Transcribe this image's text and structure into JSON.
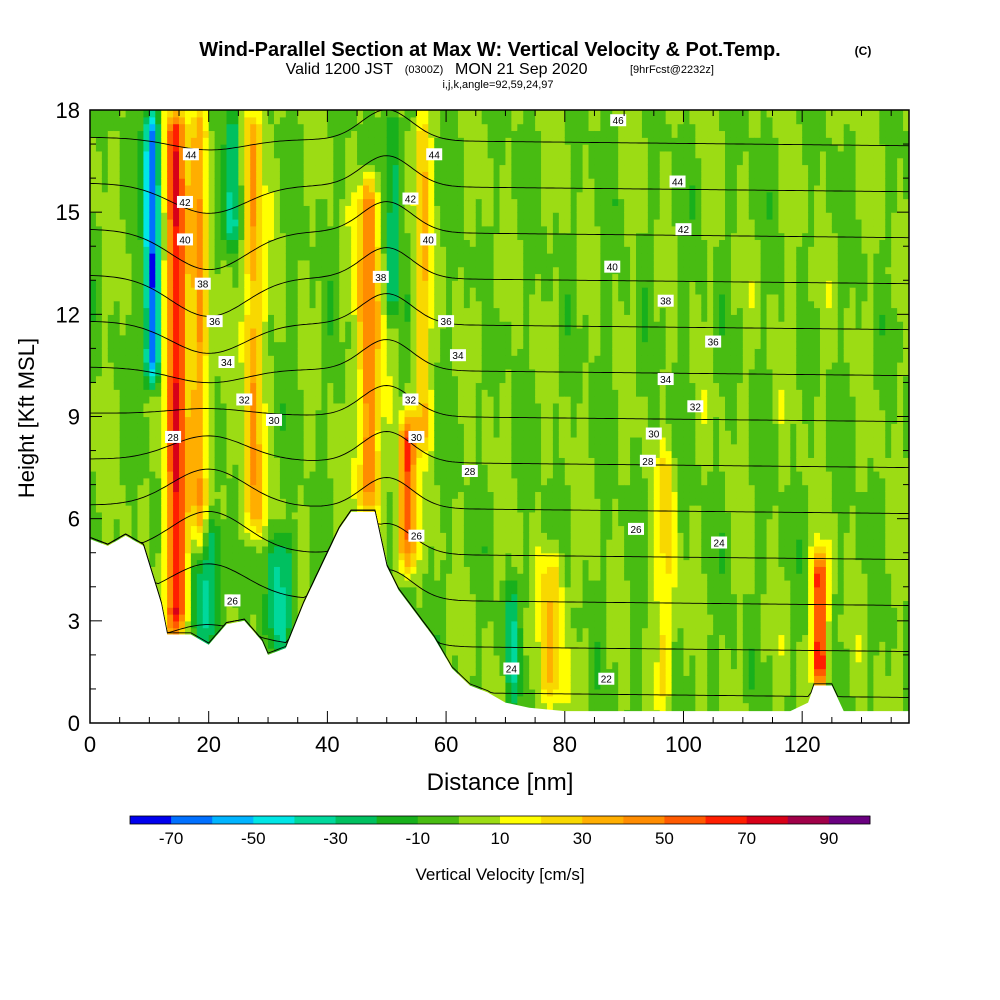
{
  "chart_data": {
    "type": "heatmap",
    "title": "Wind-Parallel Section at Max W: Vertical Velocity & Pot.Temp.",
    "title_unit": "(C)",
    "subtitle_valid": "Valid 1200 JST",
    "subtitle_utc": "(0300Z)",
    "subtitle_date": "MON 21 Sep 2020",
    "subtitle_fcst": "[9hrFcst@2232z]",
    "subtitle_indices": "i,j,k,angle=92,59,24,97",
    "xlabel": "Distance [nm]",
    "ylabel": "Height [Kft MSL]",
    "xlim": [
      0,
      138
    ],
    "ylim": [
      0,
      18
    ],
    "x_ticks": [
      "0",
      "20",
      "40",
      "60",
      "80",
      "100",
      "120"
    ],
    "y_ticks": [
      "0",
      "3",
      "6",
      "9",
      "12",
      "15",
      "18"
    ],
    "colorbar_label": "Vertical Velocity [cm/s]",
    "colorbar_ticks": [
      "-70",
      "-50",
      "-30",
      "-10",
      "10",
      "30",
      "50",
      "70",
      "90"
    ],
    "colorbar_levels": [
      -80,
      -70,
      -60,
      -50,
      -40,
      -30,
      -20,
      -10,
      0,
      10,
      20,
      30,
      40,
      50,
      60,
      70,
      80,
      90,
      100
    ],
    "colorbar_colors": [
      "#0000ee",
      "#0070ff",
      "#00b4ff",
      "#00e6e6",
      "#00d89c",
      "#00c060",
      "#18b01c",
      "#48bc12",
      "#9cdc14",
      "#ffff00",
      "#f8d800",
      "#ffae00",
      "#ff8c00",
      "#ff5a00",
      "#ff1e00",
      "#d80018",
      "#a00048",
      "#6a0080"
    ],
    "background_w_cms": 0,
    "terrain": [
      {
        "x": 0,
        "h": 5.4
      },
      {
        "x": 3,
        "h": 5.2
      },
      {
        "x": 6,
        "h": 5.5
      },
      {
        "x": 9,
        "h": 5.2
      },
      {
        "x": 12,
        "h": 3.5
      },
      {
        "x": 13,
        "h": 2.6
      },
      {
        "x": 17,
        "h": 2.6
      },
      {
        "x": 20,
        "h": 2.3
      },
      {
        "x": 23,
        "h": 2.9
      },
      {
        "x": 26,
        "h": 3.0
      },
      {
        "x": 29,
        "h": 2.4
      },
      {
        "x": 30,
        "h": 2.0
      },
      {
        "x": 33,
        "h": 2.2
      },
      {
        "x": 36,
        "h": 3.5
      },
      {
        "x": 39,
        "h": 4.6
      },
      {
        "x": 42,
        "h": 5.7
      },
      {
        "x": 44,
        "h": 6.2
      },
      {
        "x": 48,
        "h": 6.2
      },
      {
        "x": 50,
        "h": 4.6
      },
      {
        "x": 52,
        "h": 3.9
      },
      {
        "x": 55,
        "h": 3.2
      },
      {
        "x": 58,
        "h": 2.5
      },
      {
        "x": 61,
        "h": 1.6
      },
      {
        "x": 64,
        "h": 1.1
      },
      {
        "x": 67,
        "h": 0.9
      },
      {
        "x": 70,
        "h": 0.6
      },
      {
        "x": 74,
        "h": 0.45
      },
      {
        "x": 80,
        "h": 0.35
      },
      {
        "x": 118,
        "h": 0.35
      },
      {
        "x": 121,
        "h": 0.6
      },
      {
        "x": 122,
        "h": 1.1
      },
      {
        "x": 125,
        "h": 1.1
      },
      {
        "x": 127,
        "h": 0.35
      },
      {
        "x": 138,
        "h": 0.35
      }
    ],
    "updraft_bands": [
      {
        "x": 14.5,
        "w": 1.8,
        "wmax": 70,
        "y0": 2.6,
        "y1": 18
      },
      {
        "x": 18.5,
        "w": 1.4,
        "wmax": 40,
        "y0": 5,
        "y1": 18
      },
      {
        "x": 27.5,
        "w": 1.6,
        "wmax": 40,
        "y0": 5.5,
        "y1": 18
      },
      {
        "x": 47,
        "w": 1.8,
        "wmax": 50,
        "y0": 6.2,
        "y1": 16
      },
      {
        "x": 53.5,
        "w": 1.4,
        "wmax": 60,
        "y0": 4.5,
        "y1": 9
      },
      {
        "x": 56,
        "w": 1.4,
        "wmax": 30,
        "y0": 8,
        "y1": 18
      },
      {
        "x": 78,
        "w": 2.0,
        "wmax": 30,
        "y0": 0.5,
        "y1": 5
      },
      {
        "x": 97,
        "w": 1.8,
        "wmax": 20,
        "y0": 0.5,
        "y1": 8
      },
      {
        "x": 123,
        "w": 1.2,
        "wmax": 70,
        "y0": 1.1,
        "y1": 5
      }
    ],
    "downdraft_bands": [
      {
        "x": 10.5,
        "w": 1.3,
        "wmin": -70,
        "y0": 10,
        "y1": 18
      },
      {
        "x": 20,
        "w": 2.6,
        "wmin": -30,
        "y0": 2.4,
        "y1": 6
      },
      {
        "x": 24,
        "w": 1.2,
        "wmin": -40,
        "y0": 14,
        "y1": 18
      },
      {
        "x": 32,
        "w": 2.4,
        "wmin": -30,
        "y0": 2.2,
        "y1": 5.5
      },
      {
        "x": 51,
        "w": 1.2,
        "wmin": -30,
        "y0": 12,
        "y1": 18
      },
      {
        "x": 71,
        "w": 1.0,
        "wmin": -30,
        "y0": 0.6,
        "y1": 4
      }
    ],
    "theta_levels": [
      22,
      24,
      26,
      28,
      30,
      32,
      34,
      36,
      38,
      40,
      42,
      44,
      46
    ],
    "theta_labels": [
      {
        "text": "46",
        "x": 89,
        "y": 17.7
      },
      {
        "text": "44",
        "x": 17,
        "y": 16.7
      },
      {
        "text": "44",
        "x": 58,
        "y": 16.7
      },
      {
        "text": "44",
        "x": 99,
        "y": 15.9
      },
      {
        "text": "42",
        "x": 16,
        "y": 15.3
      },
      {
        "text": "42",
        "x": 54,
        "y": 15.4
      },
      {
        "text": "42",
        "x": 100,
        "y": 14.5
      },
      {
        "text": "40",
        "x": 16,
        "y": 14.2
      },
      {
        "text": "40",
        "x": 57,
        "y": 14.2
      },
      {
        "text": "40",
        "x": 88,
        "y": 13.4
      },
      {
        "text": "38",
        "x": 19,
        "y": 12.9
      },
      {
        "text": "38",
        "x": 49,
        "y": 13.1
      },
      {
        "text": "38",
        "x": 97,
        "y": 12.4
      },
      {
        "text": "36",
        "x": 21,
        "y": 11.8
      },
      {
        "text": "36",
        "x": 60,
        "y": 11.8
      },
      {
        "text": "36",
        "x": 105,
        "y": 11.2
      },
      {
        "text": "34",
        "x": 23,
        "y": 10.6
      },
      {
        "text": "34",
        "x": 62,
        "y": 10.8
      },
      {
        "text": "34",
        "x": 97,
        "y": 10.1
      },
      {
        "text": "32",
        "x": 26,
        "y": 9.5
      },
      {
        "text": "32",
        "x": 54,
        "y": 9.5
      },
      {
        "text": "32",
        "x": 102,
        "y": 9.3
      },
      {
        "text": "30",
        "x": 31,
        "y": 8.9
      },
      {
        "text": "30",
        "x": 55,
        "y": 8.4
      },
      {
        "text": "30",
        "x": 95,
        "y": 8.5
      },
      {
        "text": "28",
        "x": 14,
        "y": 8.4
      },
      {
        "text": "28",
        "x": 64,
        "y": 7.4
      },
      {
        "text": "28",
        "x": 94,
        "y": 7.7
      },
      {
        "text": "26",
        "x": 55,
        "y": 5.5
      },
      {
        "text": "26",
        "x": 92,
        "y": 5.7
      },
      {
        "text": "24",
        "x": 106,
        "y": 5.3
      },
      {
        "text": "26",
        "x": 24,
        "y": 3.6
      },
      {
        "text": "24",
        "x": 71,
        "y": 1.6
      },
      {
        "text": "22",
        "x": 87,
        "y": 1.3
      }
    ]
  }
}
